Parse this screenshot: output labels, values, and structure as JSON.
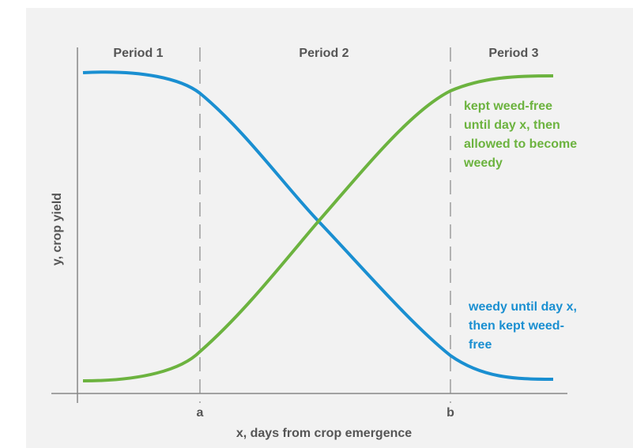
{
  "periods": [
    "Period 1",
    "Period 2",
    "Period 3"
  ],
  "ticks": [
    "a",
    "b"
  ],
  "x_axis_label": "x, days from crop emergence",
  "y_axis_label": "y, crop yield",
  "green_note": [
    "kept weed-free",
    "until day x, then",
    "allowed to become",
    "weedy"
  ],
  "blue_note": [
    "weedy until day x,",
    "then kept weed-",
    "free"
  ]
}
